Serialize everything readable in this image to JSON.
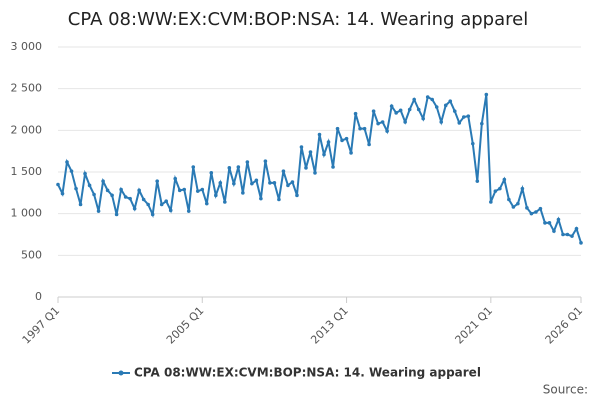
{
  "chart_data": {
    "type": "line",
    "title": "CPA 08:WW:EX:CVM:BOP:NSA: 14. Wearing apparel",
    "source": "Source:",
    "categories": [
      "1997 Q1",
      null,
      null,
      null,
      null,
      null,
      null,
      null,
      null,
      null,
      null,
      null,
      null,
      null,
      null,
      null,
      null,
      null,
      null,
      null,
      null,
      null,
      null,
      null,
      null,
      null,
      null,
      null,
      null,
      null,
      null,
      null,
      "2005 Q1",
      null,
      null,
      null,
      null,
      null,
      null,
      null,
      null,
      null,
      null,
      null,
      null,
      null,
      null,
      null,
      null,
      null,
      null,
      null,
      null,
      null,
      null,
      null,
      null,
      null,
      null,
      null,
      null,
      null,
      null,
      null,
      "2013 Q1",
      null,
      null,
      null,
      null,
      null,
      null,
      null,
      null,
      null,
      null,
      null,
      null,
      null,
      null,
      null,
      null,
      null,
      null,
      null,
      null,
      null,
      null,
      null,
      null,
      null,
      null,
      null,
      null,
      null,
      null,
      null,
      "2021 Q1",
      null,
      null,
      null,
      null,
      null,
      null,
      null,
      null,
      null,
      null,
      null,
      null,
      null,
      null,
      null,
      null,
      null,
      null,
      null,
      "2026 Q1"
    ],
    "series": [
      {
        "name": "CPA 08:WW:EX:CVM:BOP:NSA: 14. Wearing apparel",
        "color": "#2a7ab5",
        "values": [
          1350,
          1240,
          1620,
          1510,
          1300,
          1110,
          1480,
          1340,
          1230,
          1030,
          1390,
          1280,
          1220,
          990,
          1290,
          1200,
          1180,
          1060,
          1280,
          1170,
          1110,
          990,
          1390,
          1110,
          1150,
          1040,
          1420,
          1280,
          1290,
          1030,
          1560,
          1270,
          1290,
          1120,
          1490,
          1220,
          1370,
          1140,
          1550,
          1360,
          1560,
          1250,
          1620,
          1360,
          1400,
          1180,
          1630,
          1370,
          1370,
          1170,
          1510,
          1340,
          1380,
          1220,
          1800,
          1550,
          1740,
          1490,
          1950,
          1710,
          1860,
          1560,
          2020,
          1880,
          1900,
          1730,
          2200,
          2020,
          2020,
          1830,
          2230,
          2080,
          2100,
          1990,
          2290,
          2210,
          2240,
          2100,
          2250,
          2370,
          2250,
          2140,
          2400,
          2370,
          2280,
          2100,
          2300,
          2350,
          2230,
          2090,
          2160,
          2170,
          1840,
          1390,
          2080,
          2430,
          1140,
          1270,
          1300,
          1410,
          1170,
          1080,
          1120,
          1300,
          1070,
          1000,
          1020,
          1060,
          890,
          890,
          790,
          930,
          750,
          750,
          730,
          820,
          650
        ]
      }
    ],
    "ylim": [
      0,
      3000
    ],
    "yticks": [
      0,
      500,
      {
        "value": 1000,
        "label": "1 000"
      },
      {
        "value": 1500,
        "label": "1 500"
      },
      {
        "value": 2000,
        "label": "2 000"
      },
      {
        "value": 2500,
        "label": "2 500"
      },
      {
        "value": 3000,
        "label": "3 000"
      }
    ],
    "grid": true
  }
}
